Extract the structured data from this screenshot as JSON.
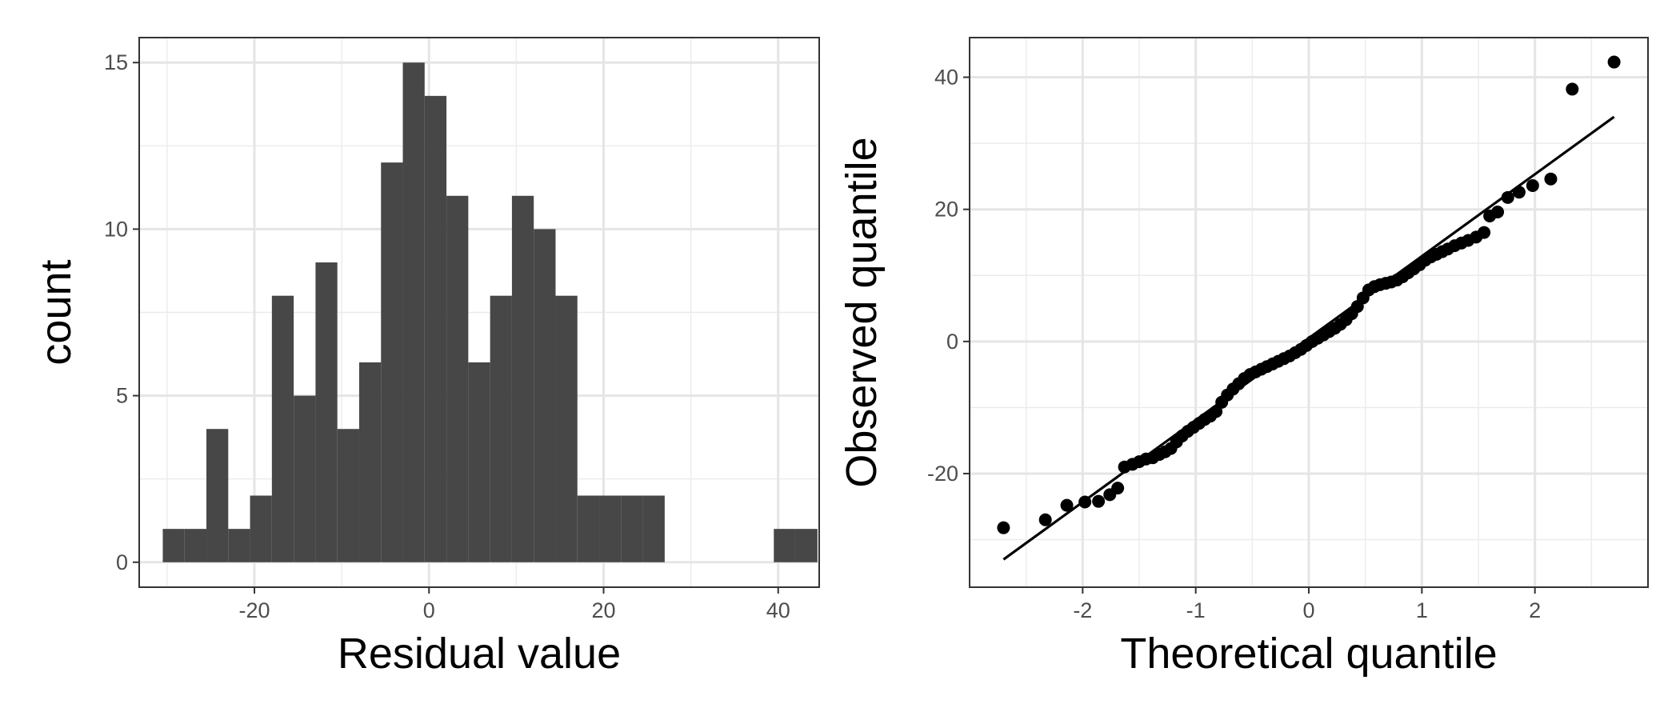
{
  "chart_data": [
    {
      "type": "bar",
      "subtype": "histogram",
      "xlabel": "Residual value",
      "ylabel": "count",
      "xlim": [
        -33.2,
        44.7
      ],
      "ylim": [
        -0.75,
        15.75
      ],
      "xticks": [
        -20,
        0,
        20,
        40
      ],
      "yticks": [
        0,
        5,
        10,
        15
      ],
      "grid": true,
      "bin_width": 2.5,
      "bins": [
        {
          "x0": -30.5,
          "x1": -28.0,
          "count": 1
        },
        {
          "x0": -28.0,
          "x1": -25.5,
          "count": 1
        },
        {
          "x0": -25.5,
          "x1": -23.0,
          "count": 4
        },
        {
          "x0": -23.0,
          "x1": -20.5,
          "count": 1
        },
        {
          "x0": -20.5,
          "x1": -18.0,
          "count": 2
        },
        {
          "x0": -18.0,
          "x1": -15.5,
          "count": 8
        },
        {
          "x0": -15.5,
          "x1": -13.0,
          "count": 5
        },
        {
          "x0": -13.0,
          "x1": -10.5,
          "count": 9
        },
        {
          "x0": -10.5,
          "x1": -8.0,
          "count": 4
        },
        {
          "x0": -8.0,
          "x1": -5.5,
          "count": 6
        },
        {
          "x0": -5.5,
          "x1": -3.0,
          "count": 12
        },
        {
          "x0": -3.0,
          "x1": -0.5,
          "count": 15
        },
        {
          "x0": -0.5,
          "x1": 2.0,
          "count": 14
        },
        {
          "x0": 2.0,
          "x1": 4.5,
          "count": 11
        },
        {
          "x0": 4.5,
          "x1": 7.0,
          "count": 6
        },
        {
          "x0": 7.0,
          "x1": 9.5,
          "count": 8
        },
        {
          "x0": 9.5,
          "x1": 12.0,
          "count": 11
        },
        {
          "x0": 12.0,
          "x1": 14.5,
          "count": 10
        },
        {
          "x0": 14.5,
          "x1": 17.0,
          "count": 8
        },
        {
          "x0": 17.0,
          "x1": 19.5,
          "count": 2
        },
        {
          "x0": 19.5,
          "x1": 22.0,
          "count": 2
        },
        {
          "x0": 22.0,
          "x1": 24.5,
          "count": 2
        },
        {
          "x0": 24.5,
          "x1": 27.0,
          "count": 2
        },
        {
          "x0": 39.5,
          "x1": 42.0,
          "count": 1
        },
        {
          "x0": 42.0,
          "x1": 44.5,
          "count": 1
        }
      ],
      "bar_color": "#474747"
    },
    {
      "type": "scatter",
      "xlabel": "Theoretical quantile",
      "ylabel": "Observed quantile",
      "xlim": [
        -3.0,
        3.0
      ],
      "ylim": [
        -37.2,
        46.0
      ],
      "xticks": [
        -2,
        -1,
        0,
        1,
        2
      ],
      "yticks": [
        -20,
        0,
        20,
        40
      ],
      "grid": true,
      "point_color": "#000000",
      "reference_line": {
        "x": [
          -2.7,
          2.7
        ],
        "y": [
          -33.0,
          34.0
        ]
      },
      "points": [
        {
          "x": -2.7,
          "y": -28.2
        },
        {
          "x": -2.33,
          "y": -27.0
        },
        {
          "x": -2.14,
          "y": -24.8
        },
        {
          "x": -1.98,
          "y": -24.3
        },
        {
          "x": -1.86,
          "y": -24.2
        },
        {
          "x": -1.76,
          "y": -23.2
        },
        {
          "x": -1.69,
          "y": -22.2
        },
        {
          "x": -1.63,
          "y": -19.0
        },
        {
          "x": -1.56,
          "y": -18.6
        },
        {
          "x": -1.5,
          "y": -18.2
        },
        {
          "x": -1.44,
          "y": -17.8
        },
        {
          "x": -1.38,
          "y": -17.6
        },
        {
          "x": -1.32,
          "y": -17.1
        },
        {
          "x": -1.27,
          "y": -16.7
        },
        {
          "x": -1.22,
          "y": -16.2
        },
        {
          "x": -1.17,
          "y": -15.2
        },
        {
          "x": -1.12,
          "y": -14.3
        },
        {
          "x": -1.07,
          "y": -13.6
        },
        {
          "x": -1.02,
          "y": -13.0
        },
        {
          "x": -0.97,
          "y": -12.4
        },
        {
          "x": -0.92,
          "y": -11.8
        },
        {
          "x": -0.87,
          "y": -11.3
        },
        {
          "x": -0.82,
          "y": -10.6
        },
        {
          "x": -0.77,
          "y": -9.2
        },
        {
          "x": -0.72,
          "y": -8.1
        },
        {
          "x": -0.67,
          "y": -7.2
        },
        {
          "x": -0.62,
          "y": -6.4
        },
        {
          "x": -0.57,
          "y": -5.6
        },
        {
          "x": -0.52,
          "y": -5.0
        },
        {
          "x": -0.47,
          "y": -4.6
        },
        {
          "x": -0.42,
          "y": -4.2
        },
        {
          "x": -0.37,
          "y": -3.8
        },
        {
          "x": -0.32,
          "y": -3.4
        },
        {
          "x": -0.27,
          "y": -3.0
        },
        {
          "x": -0.22,
          "y": -2.6
        },
        {
          "x": -0.17,
          "y": -2.2
        },
        {
          "x": -0.12,
          "y": -1.7
        },
        {
          "x": -0.07,
          "y": -1.2
        },
        {
          "x": -0.02,
          "y": -0.6
        },
        {
          "x": 0.03,
          "y": 0.0
        },
        {
          "x": 0.08,
          "y": 0.5
        },
        {
          "x": 0.13,
          "y": 1.0
        },
        {
          "x": 0.18,
          "y": 1.5
        },
        {
          "x": 0.23,
          "y": 2.0
        },
        {
          "x": 0.28,
          "y": 2.6
        },
        {
          "x": 0.33,
          "y": 3.3
        },
        {
          "x": 0.38,
          "y": 4.2
        },
        {
          "x": 0.43,
          "y": 5.3
        },
        {
          "x": 0.48,
          "y": 6.6
        },
        {
          "x": 0.53,
          "y": 7.8
        },
        {
          "x": 0.58,
          "y": 8.3
        },
        {
          "x": 0.63,
          "y": 8.6
        },
        {
          "x": 0.68,
          "y": 8.8
        },
        {
          "x": 0.73,
          "y": 9.0
        },
        {
          "x": 0.78,
          "y": 9.3
        },
        {
          "x": 0.83,
          "y": 9.8
        },
        {
          "x": 0.88,
          "y": 10.4
        },
        {
          "x": 0.93,
          "y": 11.0
        },
        {
          "x": 0.98,
          "y": 11.6
        },
        {
          "x": 1.03,
          "y": 12.3
        },
        {
          "x": 1.08,
          "y": 12.8
        },
        {
          "x": 1.13,
          "y": 13.2
        },
        {
          "x": 1.18,
          "y": 13.6
        },
        {
          "x": 1.23,
          "y": 14.0
        },
        {
          "x": 1.29,
          "y": 14.5
        },
        {
          "x": 1.35,
          "y": 14.9
        },
        {
          "x": 1.41,
          "y": 15.3
        },
        {
          "x": 1.48,
          "y": 15.8
        },
        {
          "x": 1.55,
          "y": 16.5
        },
        {
          "x": 1.6,
          "y": 19.0
        },
        {
          "x": 1.67,
          "y": 19.6
        },
        {
          "x": 1.76,
          "y": 21.8
        },
        {
          "x": 1.86,
          "y": 22.6
        },
        {
          "x": 1.98,
          "y": 23.6
        },
        {
          "x": 2.14,
          "y": 24.6
        },
        {
          "x": 2.33,
          "y": 38.2
        },
        {
          "x": 2.7,
          "y": 42.3
        }
      ]
    }
  ]
}
